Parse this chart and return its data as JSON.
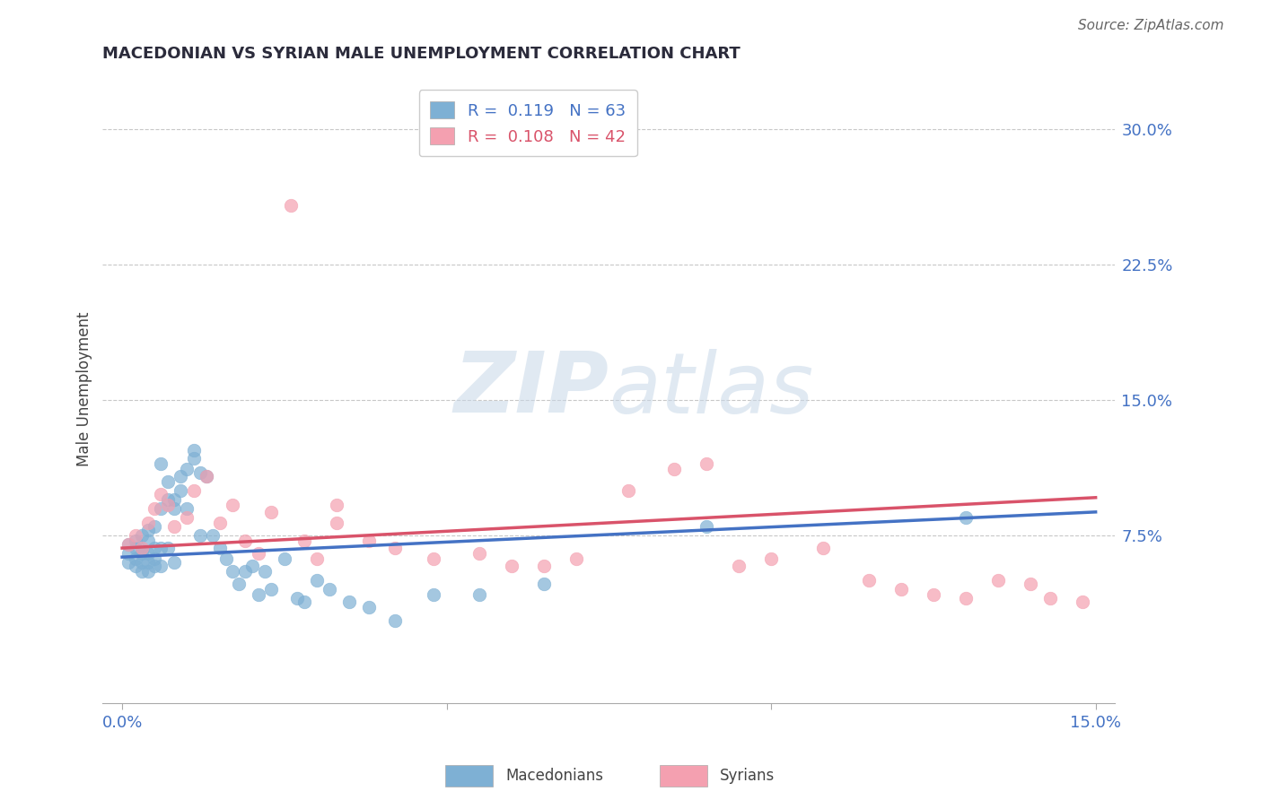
{
  "title": "MACEDONIAN VS SYRIAN MALE UNEMPLOYMENT CORRELATION CHART",
  "source_text": "Source: ZipAtlas.com",
  "ylabel": "Male Unemployment",
  "xlim": [
    -0.003,
    0.153
  ],
  "ylim": [
    -0.018,
    0.33
  ],
  "yticks": [
    0.0,
    0.075,
    0.15,
    0.225,
    0.3
  ],
  "ytick_labels": [
    "",
    "7.5%",
    "15.0%",
    "22.5%",
    "30.0%"
  ],
  "xticks": [
    0.0,
    0.05,
    0.1,
    0.15
  ],
  "xtick_labels": [
    "0.0%",
    "",
    "",
    "15.0%"
  ],
  "macedonian_color": "#7EB0D4",
  "syrian_color": "#F4A0B0",
  "macedonian_line_color": "#4472C4",
  "syrian_line_color": "#D9536A",
  "legend_r_macedonian": "0.119",
  "legend_n_macedonian": "63",
  "legend_r_syrian": "0.108",
  "legend_n_syrian": "42",
  "mac_line_start_y": 0.063,
  "mac_line_end_y": 0.088,
  "syr_line_start_y": 0.068,
  "syr_line_end_y": 0.096,
  "macedonian_x": [
    0.001,
    0.001,
    0.001,
    0.002,
    0.002,
    0.002,
    0.002,
    0.003,
    0.003,
    0.003,
    0.003,
    0.003,
    0.004,
    0.004,
    0.004,
    0.004,
    0.004,
    0.005,
    0.005,
    0.005,
    0.005,
    0.006,
    0.006,
    0.006,
    0.006,
    0.007,
    0.007,
    0.007,
    0.008,
    0.008,
    0.008,
    0.009,
    0.009,
    0.01,
    0.01,
    0.011,
    0.011,
    0.012,
    0.012,
    0.013,
    0.014,
    0.015,
    0.016,
    0.017,
    0.018,
    0.019,
    0.02,
    0.021,
    0.022,
    0.023,
    0.025,
    0.027,
    0.028,
    0.03,
    0.032,
    0.035,
    0.038,
    0.042,
    0.048,
    0.055,
    0.065,
    0.09,
    0.13
  ],
  "macedonian_y": [
    0.065,
    0.07,
    0.06,
    0.068,
    0.072,
    0.058,
    0.062,
    0.067,
    0.065,
    0.075,
    0.055,
    0.06,
    0.078,
    0.072,
    0.065,
    0.06,
    0.055,
    0.08,
    0.068,
    0.062,
    0.058,
    0.09,
    0.115,
    0.068,
    0.058,
    0.095,
    0.105,
    0.068,
    0.09,
    0.095,
    0.06,
    0.1,
    0.108,
    0.112,
    0.09,
    0.118,
    0.122,
    0.11,
    0.075,
    0.108,
    0.075,
    0.068,
    0.062,
    0.055,
    0.048,
    0.055,
    0.058,
    0.042,
    0.055,
    0.045,
    0.062,
    0.04,
    0.038,
    0.05,
    0.045,
    0.038,
    0.035,
    0.028,
    0.042,
    0.042,
    0.048,
    0.08,
    0.085
  ],
  "syrian_x": [
    0.001,
    0.002,
    0.003,
    0.004,
    0.005,
    0.006,
    0.007,
    0.008,
    0.01,
    0.011,
    0.013,
    0.015,
    0.017,
    0.019,
    0.021,
    0.023,
    0.026,
    0.028,
    0.03,
    0.033,
    0.033,
    0.038,
    0.042,
    0.048,
    0.055,
    0.06,
    0.065,
    0.07,
    0.078,
    0.085,
    0.09,
    0.095,
    0.1,
    0.108,
    0.115,
    0.12,
    0.125,
    0.13,
    0.135,
    0.14,
    0.143,
    0.148
  ],
  "syrian_y": [
    0.07,
    0.075,
    0.068,
    0.082,
    0.09,
    0.098,
    0.092,
    0.08,
    0.085,
    0.1,
    0.108,
    0.082,
    0.092,
    0.072,
    0.065,
    0.088,
    0.258,
    0.072,
    0.062,
    0.092,
    0.082,
    0.072,
    0.068,
    0.062,
    0.065,
    0.058,
    0.058,
    0.062,
    0.1,
    0.112,
    0.115,
    0.058,
    0.062,
    0.068,
    0.05,
    0.045,
    0.042,
    0.04,
    0.05,
    0.048,
    0.04,
    0.038
  ]
}
